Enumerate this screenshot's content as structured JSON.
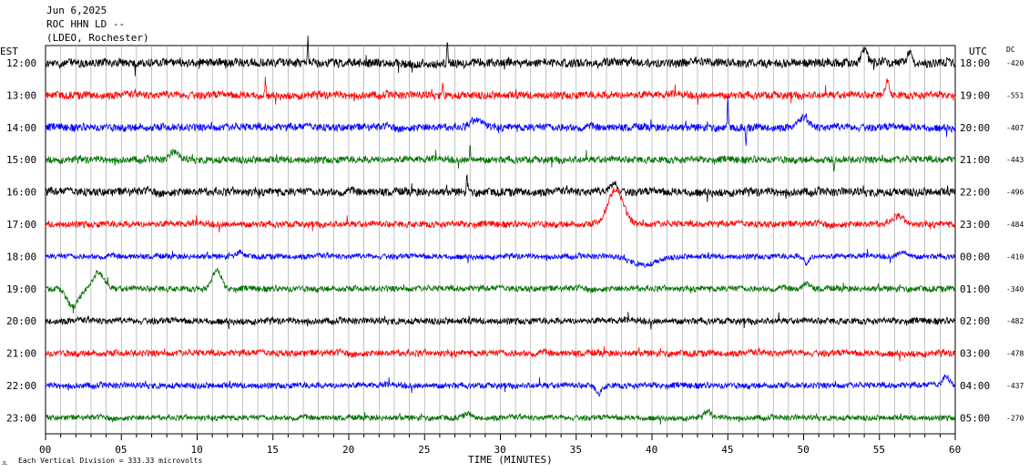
{
  "header": {
    "date": "Jun 6,2025",
    "station": "ROC HHN LD --",
    "network": "(LDEO, Rochester)"
  },
  "left_axis_title": "EST",
  "right_axis_title": "UTC",
  "dc_title": "DC",
  "footer": {
    "division_note": "Each Vertical Division =  333.33 microvolts",
    "mark": "JL"
  },
  "chart_data": {
    "type": "line",
    "title": "",
    "xlabel": "TIME (MINUTES)",
    "ylabel": "",
    "xlim": [
      0,
      60
    ],
    "x_ticks": [
      "00",
      "05",
      "10",
      "15",
      "20",
      "25",
      "30",
      "35",
      "40",
      "45",
      "50",
      "55",
      "60"
    ],
    "trace_colors": [
      "#000000",
      "#ff0000",
      "#0000ff",
      "#007000"
    ],
    "traces": [
      {
        "est": "12:00",
        "utc": "18:00",
        "dc": "-420",
        "color": "#000000",
        "amp": 1.6,
        "events": [
          {
            "t": 17.3,
            "a": -2.6,
            "w": 0.05
          },
          {
            "t": 26.5,
            "a": -2.2,
            "w": 0.05
          },
          {
            "t": 54,
            "a": -1.5,
            "w": 0.3
          },
          {
            "t": 57,
            "a": -1.4,
            "w": 0.2
          }
        ]
      },
      {
        "est": "13:00",
        "utc": "19:00",
        "dc": "-551",
        "color": "#ff0000",
        "amp": 1.4,
        "events": [
          {
            "t": 14.5,
            "a": -1.8,
            "w": 0.05
          },
          {
            "t": 26.2,
            "a": -1.8,
            "w": 0.05
          },
          {
            "t": 55.5,
            "a": -1.5,
            "w": 0.2
          }
        ]
      },
      {
        "est": "14:00",
        "utc": "20:00",
        "dc": "-407",
        "color": "#0000ff",
        "amp": 1.4,
        "events": [
          {
            "t": 28.5,
            "a": -0.8,
            "w": 0.6
          },
          {
            "t": 45,
            "a": -3.0,
            "w": 0.05
          },
          {
            "t": 46.2,
            "a": 2.2,
            "w": 0.05
          },
          {
            "t": 50,
            "a": -1.0,
            "w": 0.4
          }
        ]
      },
      {
        "est": "15:00",
        "utc": "21:00",
        "dc": "-443",
        "color": "#007000",
        "amp": 1.3,
        "events": [
          {
            "t": 8.5,
            "a": -0.8,
            "w": 0.4
          },
          {
            "t": 28,
            "a": -1.6,
            "w": 0.05
          },
          {
            "t": 52,
            "a": 1.8,
            "w": 0.05
          }
        ]
      },
      {
        "est": "16:00",
        "utc": "22:00",
        "dc": "-496",
        "color": "#000000",
        "amp": 1.5,
        "events": [
          {
            "t": 27.8,
            "a": -1.8,
            "w": 0.05
          },
          {
            "t": 37.5,
            "a": -1.0,
            "w": 0.3
          }
        ]
      },
      {
        "est": "17:00",
        "utc": "23:00",
        "dc": "-484",
        "color": "#ff0000",
        "amp": 1.2,
        "events": [
          {
            "t": 37.6,
            "a": -3.8,
            "w": 0.7
          },
          {
            "t": 56.2,
            "a": -0.9,
            "w": 0.5
          }
        ]
      },
      {
        "est": "18:00",
        "utc": "00:00",
        "dc": "-410",
        "color": "#0000ff",
        "amp": 1.0,
        "events": [
          {
            "t": 12.8,
            "a": -0.6,
            "w": 0.3
          },
          {
            "t": 39.5,
            "a": 0.9,
            "w": 1.2
          },
          {
            "t": 50.2,
            "a": 0.9,
            "w": 0.2
          },
          {
            "t": 56.5,
            "a": -0.5,
            "w": 0.4
          }
        ]
      },
      {
        "est": "19:00",
        "utc": "01:00",
        "dc": "-340",
        "color": "#007000",
        "amp": 1.1,
        "events": [
          {
            "t": 1.8,
            "a": 2.0,
            "w": 0.5
          },
          {
            "t": 3.5,
            "a": -1.8,
            "w": 0.5
          },
          {
            "t": 11.3,
            "a": -2.0,
            "w": 0.4
          },
          {
            "t": 50.2,
            "a": -0.6,
            "w": 0.3
          }
        ]
      },
      {
        "est": "20:00",
        "utc": "02:00",
        "dc": "-482",
        "color": "#000000",
        "amp": 1.2,
        "events": []
      },
      {
        "est": "21:00",
        "utc": "03:00",
        "dc": "-478",
        "color": "#ff0000",
        "amp": 1.2,
        "events": []
      },
      {
        "est": "22:00",
        "utc": "04:00",
        "dc": "-437",
        "color": "#0000ff",
        "amp": 1.1,
        "events": [
          {
            "t": 36.5,
            "a": 0.8,
            "w": 0.3
          },
          {
            "t": 59.4,
            "a": -1.0,
            "w": 0.3
          }
        ]
      },
      {
        "est": "23:00",
        "utc": "05:00",
        "dc": "-270",
        "color": "#007000",
        "amp": 1.0,
        "events": [
          {
            "t": 27.8,
            "a": -0.5,
            "w": 0.3
          },
          {
            "t": 43.7,
            "a": -0.7,
            "w": 0.3
          }
        ]
      }
    ],
    "grid": "vertical-minutes"
  }
}
